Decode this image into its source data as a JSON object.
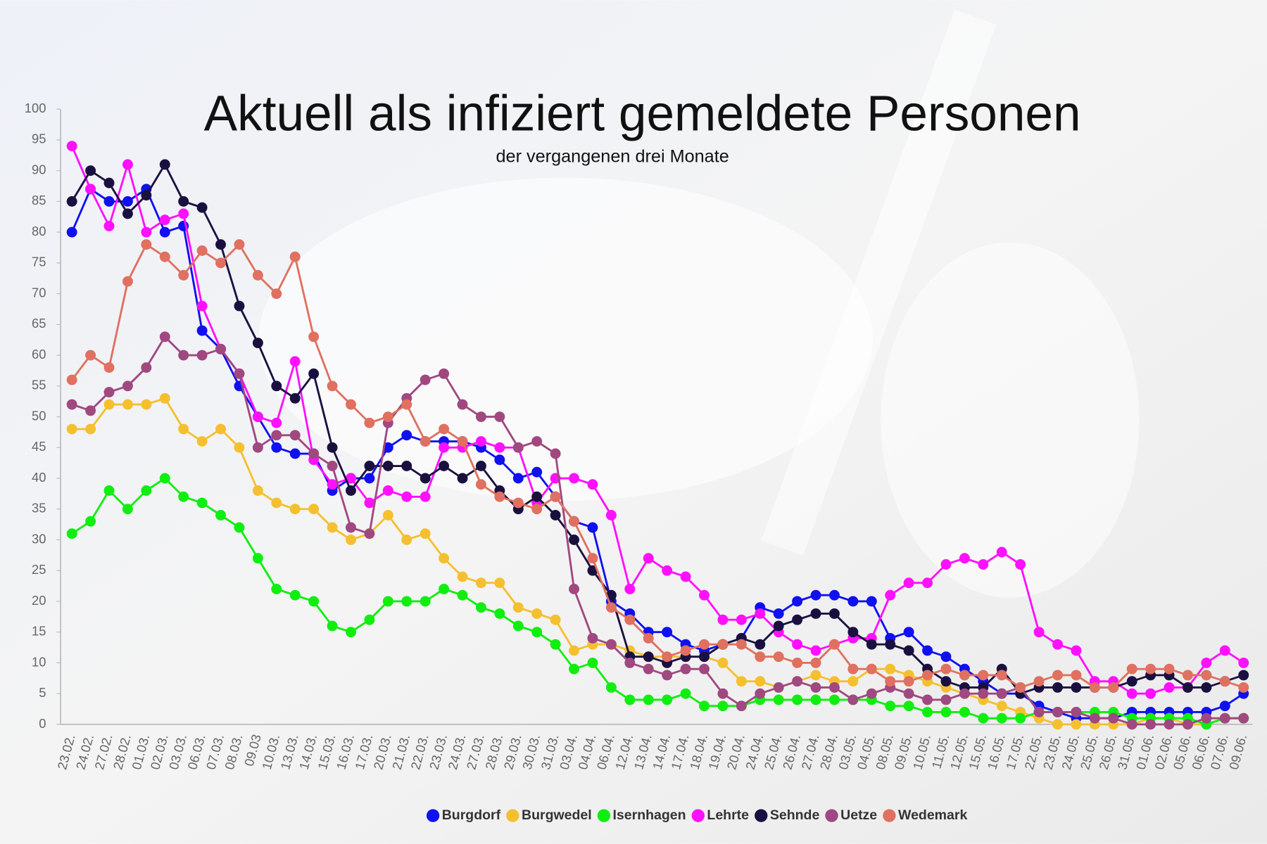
{
  "chart_data": {
    "type": "line",
    "title": "Aktuell als infiziert gemeldete Personen",
    "subtitle": "der vergangenen drei Monate",
    "categories": [
      "23.02.",
      "24.02.",
      "27.02.",
      "28.02.",
      "01.03.",
      "02.03.",
      "03.03.",
      "06.03.",
      "07.03.",
      "08.03.",
      "09.03",
      "10.03.",
      "13.03.",
      "14.03.",
      "15.03.",
      "16.03.",
      "17.03.",
      "20.03.",
      "21.03.",
      "22.03.",
      "23.03.",
      "24.03.",
      "27.03.",
      "28.03.",
      "29.03.",
      "30.03.",
      "31.03.",
      "03.04.",
      "04.04.",
      "06.04.",
      "12.04.",
      "13.04.",
      "14.04.",
      "17.04.",
      "18.04.",
      "19.04.",
      "20.04.",
      "24.04.",
      "25.04.",
      "26.04.",
      "27.04.",
      "28.04.",
      "03.05.",
      "04.05.",
      "08.05.",
      "09.05.",
      "10.05.",
      "11.05.",
      "12.05.",
      "15.05.",
      "16.05.",
      "17.05.",
      "22.05.",
      "23.05.",
      "24.05.",
      "25.05.",
      "26.05.",
      "31.05.",
      "01.06.",
      "02.06.",
      "05.06.",
      "06.06.",
      "07.06.",
      "09.06."
    ],
    "series": [
      {
        "name": "Burgdorf",
        "color": "#1010f0",
        "values": [
          80,
          87,
          85,
          85,
          87,
          80,
          81,
          64,
          61,
          55,
          50,
          45,
          44,
          44,
          38,
          40,
          40,
          45,
          47,
          46,
          46,
          46,
          45,
          43,
          40,
          41,
          37,
          33,
          32,
          20,
          18,
          15,
          15,
          13,
          12,
          13,
          14,
          19,
          18,
          20,
          21,
          21,
          20,
          20,
          14,
          15,
          12,
          11,
          9,
          7,
          5,
          5,
          3,
          2,
          1,
          1,
          1,
          2,
          2,
          2,
          2,
          2,
          3,
          5
        ]
      },
      {
        "name": "Burgwedel",
        "color": "#f5c030",
        "values": [
          48,
          48,
          52,
          52,
          52,
          53,
          48,
          46,
          48,
          45,
          38,
          36,
          35,
          35,
          32,
          30,
          31,
          34,
          30,
          31,
          27,
          24,
          23,
          23,
          19,
          18,
          17,
          12,
          13,
          13,
          12,
          11,
          11,
          11,
          11,
          10,
          7,
          7,
          6,
          7,
          8,
          7,
          7,
          9,
          9,
          8,
          7,
          6,
          5,
          4,
          3,
          2,
          1,
          0,
          0,
          0,
          0,
          0,
          1,
          1,
          0,
          0,
          1,
          1
        ]
      },
      {
        "name": "Isernhagen",
        "color": "#10ee10",
        "values": [
          31,
          33,
          38,
          35,
          38,
          40,
          37,
          36,
          34,
          32,
          27,
          22,
          21,
          20,
          16,
          15,
          17,
          20,
          20,
          20,
          22,
          21,
          19,
          18,
          16,
          15,
          13,
          9,
          10,
          6,
          4,
          4,
          4,
          5,
          3,
          3,
          3,
          4,
          4,
          4,
          4,
          4,
          4,
          4,
          3,
          3,
          2,
          2,
          2,
          1,
          1,
          1,
          2,
          2,
          2,
          2,
          2,
          1,
          1,
          1,
          1,
          0,
          1,
          1
        ]
      },
      {
        "name": "Lehrte",
        "color": "#ff10ff",
        "values": [
          94,
          87,
          81,
          91,
          80,
          82,
          83,
          68,
          61,
          57,
          50,
          49,
          59,
          43,
          39,
          40,
          36,
          38,
          37,
          37,
          45,
          45,
          46,
          45,
          45,
          36,
          40,
          40,
          39,
          34,
          22,
          27,
          25,
          24,
          21,
          17,
          17,
          18,
          15,
          13,
          12,
          13,
          14,
          14,
          21,
          23,
          23,
          26,
          27,
          26,
          28,
          26,
          15,
          13,
          12,
          7,
          7,
          5,
          5,
          6,
          6,
          10,
          12,
          10
        ]
      },
      {
        "name": "Sehnde",
        "color": "#1a1040",
        "values": [
          85,
          90,
          88,
          83,
          86,
          91,
          85,
          84,
          78,
          68,
          62,
          55,
          53,
          57,
          45,
          38,
          42,
          42,
          42,
          40,
          42,
          40,
          42,
          38,
          35,
          37,
          34,
          30,
          25,
          21,
          11,
          11,
          10,
          11,
          11,
          13,
          14,
          13,
          16,
          17,
          18,
          18,
          15,
          13,
          13,
          12,
          9,
          7,
          6,
          6,
          9,
          5,
          6,
          6,
          6,
          6,
          6,
          7,
          8,
          8,
          6,
          6,
          7,
          8
        ]
      },
      {
        "name": "Uetze",
        "color": "#a04880",
        "values": [
          52,
          51,
          54,
          55,
          58,
          63,
          60,
          60,
          61,
          57,
          45,
          47,
          47,
          44,
          42,
          32,
          31,
          49,
          53,
          56,
          57,
          52,
          50,
          50,
          45,
          46,
          44,
          22,
          14,
          13,
          10,
          9,
          8,
          9,
          9,
          5,
          3,
          5,
          6,
          7,
          6,
          6,
          4,
          5,
          6,
          5,
          4,
          4,
          5,
          5,
          5,
          6,
          2,
          2,
          2,
          1,
          1,
          0,
          0,
          0,
          0,
          1,
          1,
          1
        ]
      },
      {
        "name": "Wedemark",
        "color": "#e07060",
        "values": [
          56,
          60,
          58,
          72,
          78,
          76,
          73,
          77,
          75,
          78,
          73,
          70,
          76,
          63,
          55,
          52,
          49,
          50,
          52,
          46,
          48,
          46,
          39,
          37,
          36,
          35,
          37,
          33,
          27,
          19,
          17,
          14,
          11,
          12,
          13,
          13,
          13,
          11,
          11,
          10,
          10,
          13,
          9,
          9,
          7,
          7,
          8,
          9,
          8,
          8,
          8,
          6,
          7,
          8,
          8,
          6,
          6,
          9,
          9,
          9,
          8,
          8,
          7,
          6
        ]
      }
    ],
    "ylim": [
      0,
      100
    ],
    "yticks": [
      0,
      5,
      10,
      15,
      20,
      25,
      30,
      35,
      40,
      45,
      50,
      55,
      60,
      65,
      70,
      75,
      80,
      85,
      90,
      95,
      100
    ],
    "grid": false,
    "legend": "bottom"
  }
}
